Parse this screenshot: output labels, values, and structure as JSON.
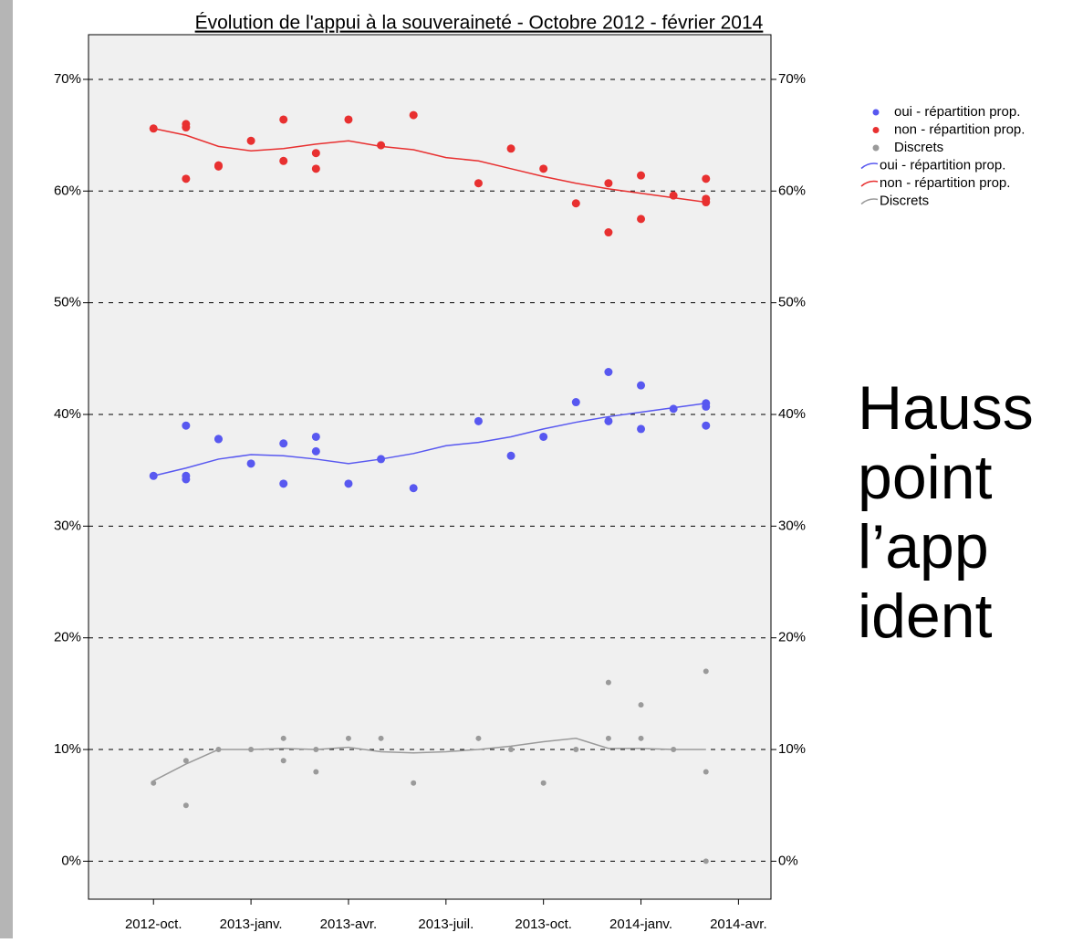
{
  "chart_data": {
    "type": "scatter",
    "title": "Évolution de l'appui à la souveraineté - Octobre 2012 - février 2014",
    "xlim": [
      "2012-08",
      "2014-05"
    ],
    "xticks": [
      {
        "value": "2012-10",
        "label": "2012-oct."
      },
      {
        "value": "2013-01",
        "label": "2013-janv."
      },
      {
        "value": "2013-04",
        "label": "2013-avr."
      },
      {
        "value": "2013-07",
        "label": "2013-juil."
      },
      {
        "value": "2013-10",
        "label": "2013-oct."
      },
      {
        "value": "2014-01",
        "label": "2014-janv."
      },
      {
        "value": "2014-04",
        "label": "2014-avr."
      }
    ],
    "ylim": [
      -3.4,
      74
    ],
    "yticks": [
      {
        "value": 0,
        "label": "0%"
      },
      {
        "value": 10,
        "label": "10%"
      },
      {
        "value": 20,
        "label": "20%"
      },
      {
        "value": 30,
        "label": "30%"
      },
      {
        "value": 40,
        "label": "40%"
      },
      {
        "value": 50,
        "label": "50%"
      },
      {
        "value": 60,
        "label": "60%"
      },
      {
        "value": 70,
        "label": "70%"
      }
    ],
    "grid": true,
    "series": [
      {
        "name": "oui - répartition prop.",
        "mode": "markers",
        "color": "#5858f0",
        "x": [
          "2012-10",
          "2012-11",
          "2012-11",
          "2012-11",
          "2012-12",
          "2012-12",
          "2013-01",
          "2013-02",
          "2013-02",
          "2013-03",
          "2013-03",
          "2013-04",
          "2013-05",
          "2013-06",
          "2013-08",
          "2013-09",
          "2013-10",
          "2013-11",
          "2013-12",
          "2013-12",
          "2014-01",
          "2014-01",
          "2014-02",
          "2014-03",
          "2014-03",
          "2014-03"
        ],
        "values": [
          34.5,
          39.0,
          34.5,
          34.2,
          37.8,
          37.8,
          35.6,
          37.4,
          33.8,
          38.0,
          36.7,
          33.8,
          36.0,
          33.4,
          39.4,
          36.3,
          38.0,
          41.1,
          43.8,
          39.4,
          42.6,
          38.7,
          40.5,
          41.0,
          40.7,
          39.0
        ]
      },
      {
        "name": "non - répartition prop.",
        "mode": "markers",
        "color": "#e83030",
        "x": [
          "2012-10",
          "2012-11",
          "2012-11",
          "2012-11",
          "2012-12",
          "2012-12",
          "2013-01",
          "2013-02",
          "2013-02",
          "2013-03",
          "2013-03",
          "2013-04",
          "2013-05",
          "2013-06",
          "2013-08",
          "2013-09",
          "2013-10",
          "2013-11",
          "2013-12",
          "2013-12",
          "2014-01",
          "2014-01",
          "2014-02",
          "2014-03",
          "2014-03",
          "2014-03"
        ],
        "values": [
          65.6,
          66.0,
          65.7,
          61.1,
          62.3,
          62.2,
          64.5,
          66.4,
          62.7,
          63.4,
          62.0,
          66.4,
          64.1,
          66.8,
          60.7,
          63.8,
          62.0,
          58.9,
          60.7,
          56.3,
          61.4,
          57.5,
          59.6,
          61.1,
          59.3,
          59.0
        ]
      },
      {
        "name": "Discrets",
        "mode": "markers",
        "color": "#9a9a9a",
        "x": [
          "2012-10",
          "2012-11",
          "2012-11",
          "2012-12",
          "2013-01",
          "2013-02",
          "2013-02",
          "2013-03",
          "2013-03",
          "2013-04",
          "2013-05",
          "2013-06",
          "2013-08",
          "2013-09",
          "2013-10",
          "2013-11",
          "2013-12",
          "2013-12",
          "2014-01",
          "2014-01",
          "2014-02",
          "2014-03",
          "2014-03",
          "2014-03"
        ],
        "values": [
          7,
          9,
          5,
          10,
          10,
          11,
          9,
          10,
          8,
          11,
          11,
          7,
          11,
          10,
          7,
          10,
          16,
          11,
          14,
          11,
          10,
          17,
          8,
          0
        ]
      },
      {
        "name": "oui - répartition prop.",
        "mode": "line",
        "color": "#5858f0",
        "x": [
          "2012-10",
          "2012-11",
          "2012-12",
          "2013-01",
          "2013-02",
          "2013-03",
          "2013-04",
          "2013-05",
          "2013-06",
          "2013-07",
          "2013-08",
          "2013-09",
          "2013-10",
          "2013-11",
          "2013-12",
          "2014-01",
          "2014-02",
          "2014-03"
        ],
        "values": [
          34.5,
          35.2,
          36.0,
          36.4,
          36.3,
          36.0,
          35.6,
          36.0,
          36.5,
          37.2,
          37.5,
          38.0,
          38.7,
          39.3,
          39.8,
          40.2,
          40.6,
          41.0
        ]
      },
      {
        "name": "non - répartition prop.",
        "mode": "line",
        "color": "#e83030",
        "x": [
          "2012-10",
          "2012-11",
          "2012-12",
          "2013-01",
          "2013-02",
          "2013-03",
          "2013-04",
          "2013-05",
          "2013-06",
          "2013-07",
          "2013-08",
          "2013-09",
          "2013-10",
          "2013-11",
          "2013-12",
          "2014-01",
          "2014-02",
          "2014-03"
        ],
        "values": [
          65.6,
          65.0,
          64.0,
          63.6,
          63.8,
          64.2,
          64.5,
          64.0,
          63.7,
          63.0,
          62.7,
          62.0,
          61.3,
          60.7,
          60.2,
          59.8,
          59.4,
          59.0
        ]
      },
      {
        "name": "Discrets",
        "mode": "line",
        "color": "#9a9a9a",
        "x": [
          "2012-10",
          "2012-11",
          "2012-12",
          "2013-01",
          "2013-02",
          "2013-03",
          "2013-04",
          "2013-05",
          "2013-06",
          "2013-07",
          "2013-08",
          "2013-09",
          "2013-10",
          "2013-11",
          "2013-12",
          "2014-01",
          "2014-02",
          "2014-03"
        ],
        "values": [
          7.2,
          8.7,
          10.0,
          10.0,
          10.1,
          10.0,
          10.2,
          9.8,
          9.7,
          9.8,
          10.0,
          10.3,
          10.7,
          11.0,
          10.1,
          10.1,
          10.0,
          10.0
        ]
      }
    ],
    "annotations": [
      "Hauss",
      "point",
      "l’app",
      "ident"
    ]
  }
}
